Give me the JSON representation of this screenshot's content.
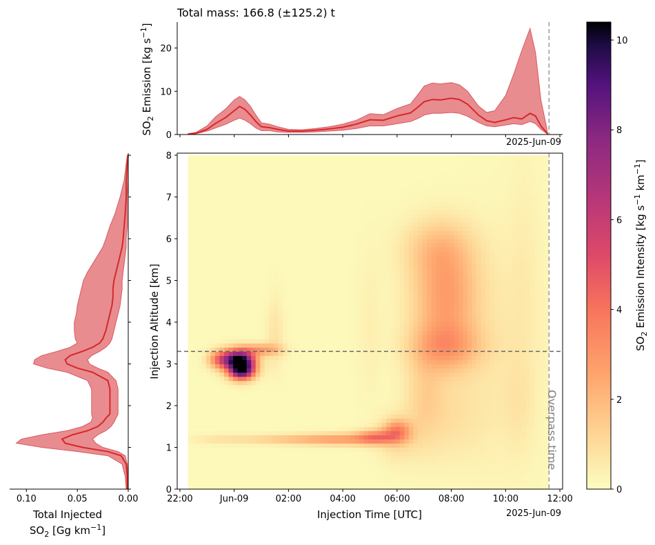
{
  "colors": {
    "series": "#d62728",
    "band": "#e88c90",
    "band_edge": "#d9595f",
    "axis": "#000000",
    "overpass_line": "#999999",
    "reference_line": "#666666",
    "overpass_text": "#808080"
  },
  "top_panel": {
    "title": "Total mass: 166.8 (±125.2) t",
    "ylabel_main": "SO",
    "ylabel_sub": "2",
    "ylabel_rest": " Emission [kg s",
    "ylabel_sup": "−1",
    "ylabel_end": "]",
    "yticks": [
      0,
      10,
      20
    ],
    "ytick_labels": [
      "0",
      "10",
      "20"
    ],
    "ylim": [
      0,
      26
    ],
    "date_offset": "2025-Jun-09",
    "chart_data": {
      "type": "area",
      "x_unit": "hours UTC relative to 2025-06-09 00:00",
      "x": [
        -1.7,
        -1.4,
        -1.0,
        -0.7,
        -0.3,
        0.0,
        0.2,
        0.4,
        0.6,
        0.8,
        1.0,
        1.3,
        1.6,
        2.0,
        2.5,
        3.0,
        3.5,
        4.0,
        4.5,
        5.0,
        5.5,
        6.0,
        6.5,
        6.8,
        7.0,
        7.3,
        7.6,
        8.0,
        8.3,
        8.6,
        9.0,
        9.3,
        9.6,
        10.0,
        10.3,
        10.6,
        10.9,
        11.1,
        11.3,
        11.5,
        11.55
      ],
      "median": [
        0.1,
        0.3,
        1.2,
        2.5,
        4.0,
        5.5,
        6.5,
        5.8,
        4.5,
        3.0,
        1.8,
        1.6,
        1.2,
        0.8,
        0.8,
        1.0,
        1.3,
        1.7,
        2.4,
        3.4,
        3.3,
        4.3,
        5.0,
        6.5,
        7.6,
        8.1,
        8.0,
        8.4,
        8.1,
        7.0,
        4.5,
        3.2,
        2.8,
        3.4,
        3.9,
        3.6,
        4.9,
        4.3,
        2.0,
        0.5,
        0.1
      ],
      "lower": [
        0.1,
        0.2,
        0.8,
        1.5,
        2.4,
        3.3,
        3.8,
        3.3,
        2.5,
        1.5,
        0.9,
        0.9,
        0.6,
        0.5,
        0.5,
        0.6,
        0.8,
        1.0,
        1.4,
        2.0,
        2.0,
        2.5,
        3.0,
        3.8,
        4.5,
        4.9,
        4.9,
        5.1,
        4.9,
        4.2,
        2.8,
        2.0,
        1.8,
        2.2,
        2.5,
        2.3,
        3.0,
        2.5,
        1.2,
        0.3,
        0.05
      ],
      "upper": [
        0.2,
        0.5,
        2.0,
        4.0,
        6.0,
        8.0,
        8.8,
        8.0,
        6.5,
        4.5,
        2.7,
        2.4,
        1.8,
        1.2,
        1.1,
        1.4,
        1.8,
        2.4,
        3.3,
        4.8,
        4.6,
        6.0,
        7.1,
        9.5,
        11.2,
        11.9,
        11.7,
        12.0,
        11.5,
        10.0,
        6.6,
        5.1,
        5.5,
        9.0,
        14.0,
        19.5,
        24.5,
        19.0,
        8.0,
        2.0,
        0.1
      ],
      "overpass_x": 11.6
    }
  },
  "main_panel": {
    "xlabel": "Injection Time [UTC]",
    "ylabel": "Injection Altitude [km]",
    "xticks": [
      -2,
      0,
      2,
      4,
      6,
      8,
      10,
      12
    ],
    "xtick_labels": [
      "22:00",
      "Jun-09",
      "02:00",
      "04:00",
      "06:00",
      "08:00",
      "10:00",
      "12:00"
    ],
    "yticks": [
      0,
      1,
      2,
      3,
      4,
      5,
      6,
      7,
      8
    ],
    "ytick_labels": [
      "0",
      "1",
      "2",
      "3",
      "4",
      "5",
      "6",
      "7",
      "8"
    ],
    "xlim": [
      -2.1,
      12.1
    ],
    "ylim": [
      0,
      8.05
    ],
    "date_offset": "2025-Jun-09",
    "overpass_label": "Overpass time",
    "chart_data": {
      "type": "heatmap",
      "x_range": [
        -1.7,
        11.5
      ],
      "y_range": [
        0,
        7.95
      ],
      "x_step": 0.166,
      "y_step": 0.1,
      "reference_altitude": 3.3,
      "overpass_x": 11.6,
      "blobs": [
        {
          "x": 0.25,
          "y": 3.0,
          "sx": 0.35,
          "sy": 0.2,
          "v": 10.0
        },
        {
          "x": 0.0,
          "y": 3.15,
          "sx": 0.45,
          "sy": 0.15,
          "v": 3.5
        },
        {
          "x": -0.5,
          "y": 3.1,
          "sx": 0.3,
          "sy": 0.15,
          "v": 3.0
        },
        {
          "x": 0.3,
          "y": 2.8,
          "sx": 0.3,
          "sy": 0.12,
          "v": 4.0
        },
        {
          "x": 1.0,
          "y": 3.35,
          "sx": 0.5,
          "sy": 0.1,
          "v": 2.5
        },
        {
          "x": 1.5,
          "y": 3.5,
          "sx": 0.25,
          "sy": 0.5,
          "v": 0.5
        },
        {
          "x": 1.5,
          "y": 4.2,
          "sx": 0.2,
          "sy": 0.5,
          "v": 0.3
        },
        {
          "x": -0.5,
          "y": 1.2,
          "sx": 0.8,
          "sy": 0.08,
          "v": 0.6
        },
        {
          "x": 2.0,
          "y": 1.2,
          "sx": 1.2,
          "sy": 0.08,
          "v": 1.5
        },
        {
          "x": 4.0,
          "y": 1.2,
          "sx": 1.0,
          "sy": 0.1,
          "v": 2.2
        },
        {
          "x": 5.2,
          "y": 1.25,
          "sx": 0.5,
          "sy": 0.12,
          "v": 3.0
        },
        {
          "x": 6.0,
          "y": 1.4,
          "sx": 0.35,
          "sy": 0.18,
          "v": 2.8
        },
        {
          "x": 6.0,
          "y": 1.2,
          "sx": 0.5,
          "sy": 0.4,
          "v": 0.8
        },
        {
          "x": 7.8,
          "y": 4.6,
          "sx": 0.85,
          "sy": 0.9,
          "v": 2.6
        },
        {
          "x": 7.8,
          "y": 3.4,
          "sx": 0.9,
          "sy": 0.4,
          "v": 2.0
        },
        {
          "x": 7.5,
          "y": 5.8,
          "sx": 0.9,
          "sy": 0.5,
          "v": 1.2
        },
        {
          "x": 7.0,
          "y": 2.2,
          "sx": 0.5,
          "sy": 0.8,
          "v": 0.9
        },
        {
          "x": 8.0,
          "y": 1.8,
          "sx": 1.0,
          "sy": 0.8,
          "v": 0.7
        },
        {
          "x": 5.0,
          "y": 4.0,
          "sx": 0.3,
          "sy": 1.2,
          "v": 0.3
        },
        {
          "x": 10.0,
          "y": 3.5,
          "sx": 1.0,
          "sy": 2.0,
          "v": 0.4
        },
        {
          "x": 10.5,
          "y": 2.0,
          "sx": 0.4,
          "sy": 0.8,
          "v": 0.35
        },
        {
          "x": 10.7,
          "y": 5.5,
          "sx": 0.4,
          "sy": 2.0,
          "v": 0.25
        }
      ]
    }
  },
  "left_panel": {
    "xlabel_line1": "Total Injected",
    "xlabel_line2_main": "SO",
    "xlabel_line2_sub": "2",
    "xlabel_line2_rest": " [Gg km",
    "xlabel_line2_sup": "−1",
    "xlabel_line2_end": "]",
    "xticks": [
      0.1,
      0.05,
      0.0
    ],
    "xtick_labels": [
      "0.10",
      "0.05",
      "0.00"
    ],
    "xlim": [
      0.1165,
      0.0
    ],
    "chart_data": {
      "type": "area",
      "altitude": [
        0.0,
        0.3,
        0.6,
        0.8,
        0.9,
        1.0,
        1.1,
        1.2,
        1.3,
        1.4,
        1.5,
        1.6,
        1.7,
        1.8,
        2.0,
        2.2,
        2.4,
        2.6,
        2.8,
        2.9,
        3.0,
        3.1,
        3.2,
        3.3,
        3.4,
        3.5,
        3.6,
        3.8,
        4.0,
        4.2,
        4.4,
        4.6,
        4.8,
        5.0,
        5.2,
        5.4,
        5.6,
        5.8,
        6.0,
        6.3,
        6.6,
        7.0,
        7.4,
        7.8,
        8.0
      ],
      "median": [
        0.001,
        0.001,
        0.002,
        0.007,
        0.02,
        0.045,
        0.062,
        0.065,
        0.055,
        0.04,
        0.03,
        0.025,
        0.022,
        0.018,
        0.018,
        0.018,
        0.018,
        0.02,
        0.035,
        0.05,
        0.06,
        0.062,
        0.057,
        0.045,
        0.035,
        0.028,
        0.025,
        0.022,
        0.02,
        0.018,
        0.016,
        0.015,
        0.015,
        0.014,
        0.012,
        0.01,
        0.008,
        0.006,
        0.005,
        0.004,
        0.003,
        0.002,
        0.002,
        0.001,
        0.0
      ],
      "lower": [
        0.0,
        0.0,
        0.001,
        0.003,
        0.01,
        0.025,
        0.032,
        0.035,
        0.03,
        0.022,
        0.017,
        0.014,
        0.012,
        0.01,
        0.01,
        0.01,
        0.01,
        0.012,
        0.02,
        0.03,
        0.038,
        0.04,
        0.036,
        0.028,
        0.022,
        0.018,
        0.016,
        0.014,
        0.012,
        0.01,
        0.008,
        0.007,
        0.006,
        0.006,
        0.005,
        0.004,
        0.003,
        0.002,
        0.002,
        0.001,
        0.001,
        0.001,
        0.0,
        0.0,
        0.0
      ],
      "upper": [
        0.002,
        0.003,
        0.006,
        0.02,
        0.05,
        0.085,
        0.11,
        0.105,
        0.085,
        0.06,
        0.045,
        0.037,
        0.035,
        0.036,
        0.036,
        0.036,
        0.036,
        0.04,
        0.06,
        0.08,
        0.093,
        0.092,
        0.085,
        0.07,
        0.057,
        0.05,
        0.052,
        0.053,
        0.053,
        0.051,
        0.05,
        0.048,
        0.046,
        0.044,
        0.04,
        0.035,
        0.03,
        0.025,
        0.022,
        0.018,
        0.013,
        0.008,
        0.004,
        0.002,
        0.001
      ]
    }
  },
  "colorbar": {
    "label_main": "SO",
    "label_sub": "2",
    "label_rest": " Emission Intensity [kg s",
    "label_sup1": "−1",
    "label_mid": " km",
    "label_sup2": "−1",
    "label_end": "]",
    "ticks": [
      0,
      2,
      4,
      6,
      8,
      10
    ],
    "tick_labels": [
      "0",
      "2",
      "4",
      "6",
      "8",
      "10"
    ],
    "range": [
      0,
      10.4
    ],
    "colormap": "magma_r"
  }
}
